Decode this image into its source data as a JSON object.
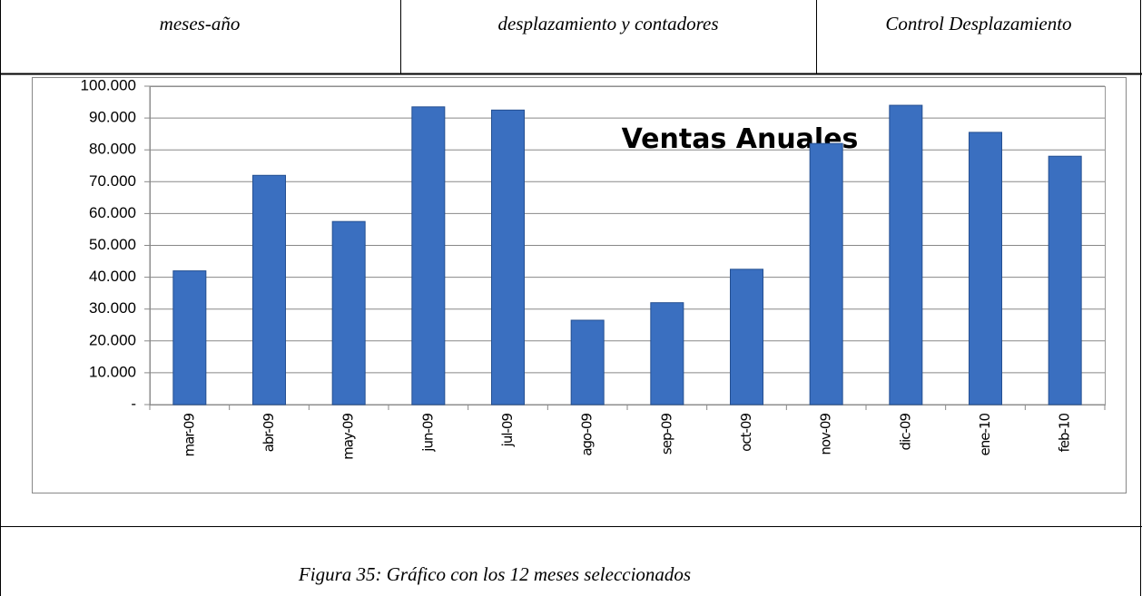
{
  "header": {
    "cells": [
      "meses-año",
      "desplazamiento y contadores",
      "Control Desplazamiento"
    ]
  },
  "chart_data": {
    "type": "bar",
    "title": "Ventas Anuales",
    "categories": [
      "mar-09",
      "abr-09",
      "may-09",
      "jun-09",
      "jul-09",
      "ago-09",
      "sep-09",
      "oct-09",
      "nov-09",
      "dic-09",
      "ene-10",
      "feb-10"
    ],
    "values": [
      42000,
      72000,
      57500,
      93500,
      92500,
      26500,
      32000,
      42500,
      82000,
      94000,
      85500,
      78000
    ],
    "color": "#3a6fc0",
    "ylim": [
      0,
      100000
    ],
    "yticks": [
      {
        "value": 0,
        "label": "-"
      },
      {
        "value": 10000,
        "label": "10.000"
      },
      {
        "value": 20000,
        "label": "20.000"
      },
      {
        "value": 30000,
        "label": "30.000"
      },
      {
        "value": 40000,
        "label": "40.000"
      },
      {
        "value": 50000,
        "label": "50.000"
      },
      {
        "value": 60000,
        "label": "60.000"
      },
      {
        "value": 70000,
        "label": "70.000"
      },
      {
        "value": 80000,
        "label": "80.000"
      },
      {
        "value": 90000,
        "label": "90.000"
      },
      {
        "value": 100000,
        "label": "100.000"
      }
    ],
    "grid": true
  },
  "caption": "Figura 35: Gráfico con los 12 meses seleccionados"
}
